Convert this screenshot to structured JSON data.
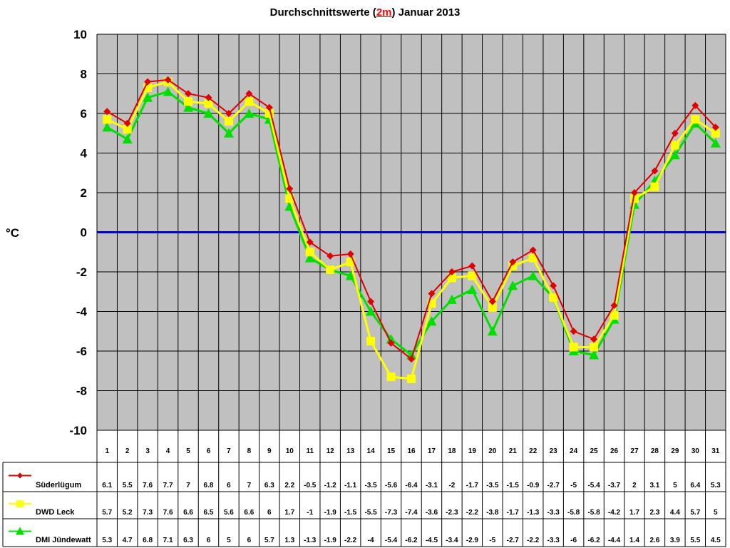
{
  "chart_data": {
    "type": "line",
    "title_prefix": "Durchschnittswerte (",
    "title_highlight": "2m",
    "title_suffix": ") Januar 2013",
    "ylabel": "°C",
    "ylim": [
      -10,
      10
    ],
    "yticks": [
      10,
      8,
      6,
      4,
      2,
      0,
      -2,
      -4,
      -6,
      -8,
      -10
    ],
    "categories": [
      "1",
      "2",
      "3",
      "4",
      "5",
      "6",
      "7",
      "8",
      "9",
      "10",
      "11",
      "12",
      "13",
      "14",
      "15",
      "16",
      "17",
      "18",
      "19",
      "20",
      "21",
      "22",
      "23",
      "24",
      "25",
      "26",
      "27",
      "28",
      "29",
      "30",
      "31"
    ],
    "reference_line": 0,
    "grid": true,
    "series": [
      {
        "name": "Süderlügum",
        "color": "#e00000",
        "marker": "diamond",
        "values": [
          6.1,
          5.5,
          7.6,
          7.7,
          7,
          6.8,
          6,
          7,
          6.3,
          2.2,
          -0.5,
          -1.2,
          -1.1,
          -3.5,
          -5.6,
          -6.4,
          -3.1,
          -2,
          -1.7,
          -3.5,
          -1.5,
          -0.9,
          -2.7,
          -5,
          -5.4,
          -3.7,
          2,
          3.1,
          5,
          6.4,
          5.3
        ]
      },
      {
        "name": "DWD Leck",
        "color": "#ffff00",
        "marker": "square",
        "values": [
          5.7,
          5.2,
          7.3,
          7.6,
          6.6,
          6.5,
          5.6,
          6.6,
          6,
          1.7,
          -1,
          -1.9,
          -1.5,
          -5.5,
          -7.3,
          -7.4,
          -3.6,
          -2.3,
          -2.2,
          -3.8,
          -1.7,
          -1.3,
          -3.3,
          -5.8,
          -5.8,
          -4.2,
          1.7,
          2.3,
          4.4,
          5.7,
          5
        ]
      },
      {
        "name": "DMI Jündewatt",
        "color": "#00e000",
        "marker": "triangle",
        "values": [
          5.3,
          4.7,
          6.8,
          7.1,
          6.3,
          6,
          5,
          6,
          5.7,
          1.3,
          -1.3,
          -1.9,
          -2.2,
          -4,
          -5.4,
          -6.2,
          -4.5,
          -3.4,
          -2.9,
          -5,
          -2.7,
          -2.2,
          -3.3,
          -6,
          -6.2,
          -4.4,
          1.4,
          2.6,
          3.9,
          5.5,
          4.5
        ]
      }
    ]
  },
  "colors": {
    "plot_background": "#c0c0c0",
    "zero_line": "#0000cc",
    "grid": "#000000"
  }
}
